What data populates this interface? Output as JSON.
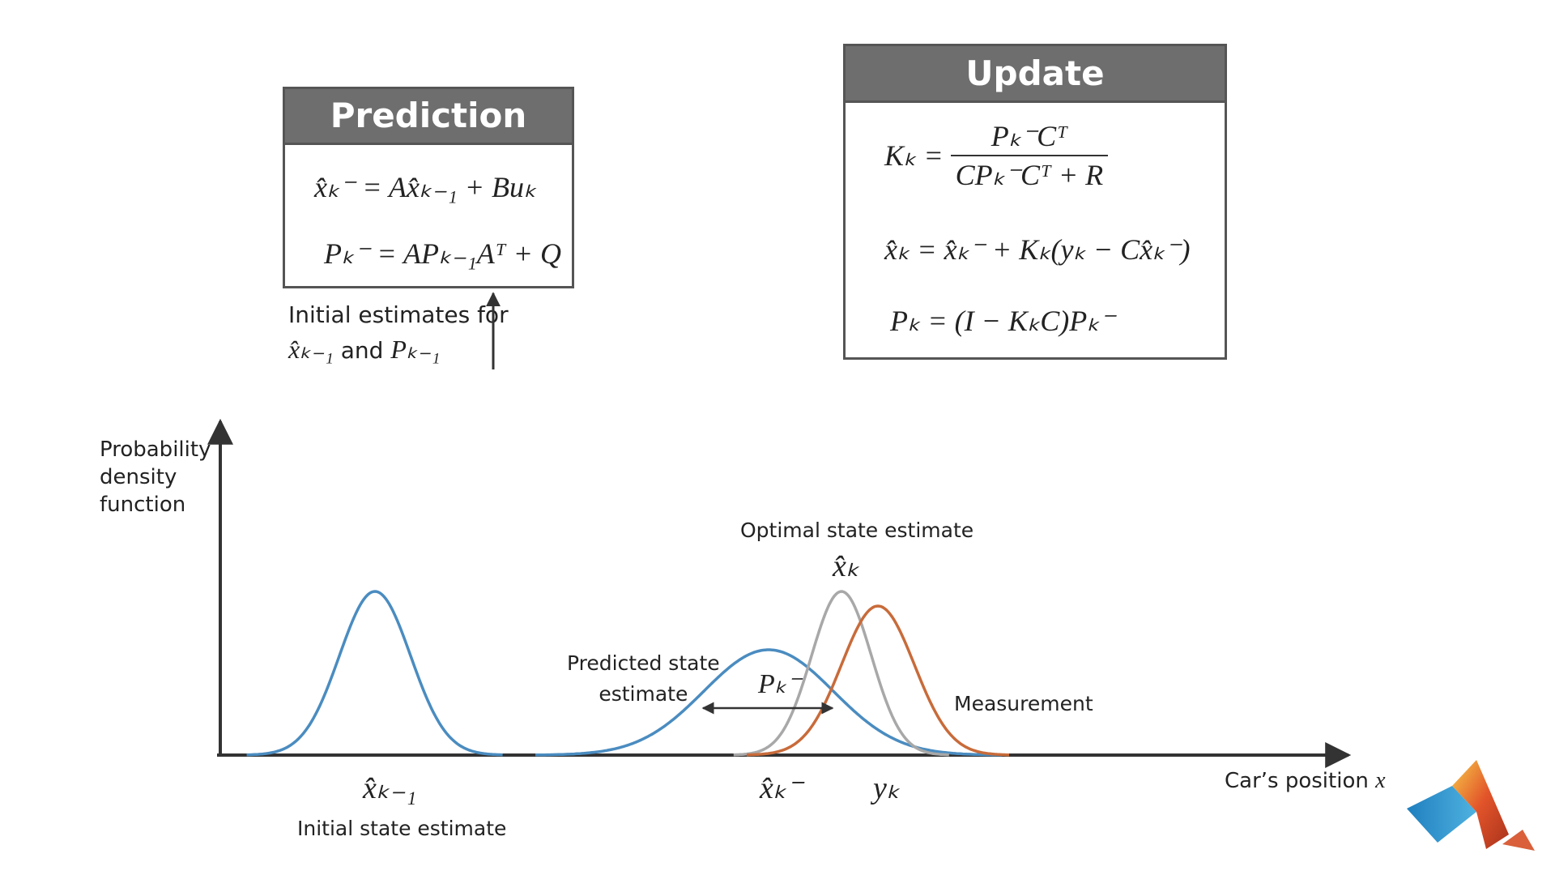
{
  "prediction": {
    "title": "Prediction",
    "eq1": "x̂ₖ⁻ = Ax̂ₖ₋₁ + Buₖ",
    "eq2": "Pₖ⁻ = APₖ₋₁Aᵀ + Q"
  },
  "update": {
    "title": "Update",
    "eq_gain_lhs": "Kₖ =",
    "eq_gain_num": "Pₖ⁻Cᵀ",
    "eq_gain_den": "CPₖ⁻Cᵀ + R",
    "eq2": "x̂ₖ = x̂ₖ⁻ + Kₖ(yₖ − Cx̂ₖ⁻)",
    "eq3": "Pₖ = (I − KₖC)Pₖ⁻"
  },
  "initial_note": {
    "line1": "Initial estimates for",
    "line2_var1": "x̂ₖ₋₁",
    "line2_and": "and",
    "line2_var2": "Pₖ₋₁"
  },
  "plot": {
    "y_axis_label_lines": [
      "Probability",
      "density",
      "function"
    ],
    "x_axis_label": "Car’s position",
    "x_axis_var": "x",
    "labels": {
      "initial_state_symbol": "x̂ₖ₋₁",
      "initial_state_text": "Initial state estimate",
      "predicted_symbol": "x̂ₖ⁻",
      "predicted_text_line1": "Predicted state",
      "predicted_text_line2": "estimate",
      "predicted_covariance": "Pₖ⁻",
      "optimal_text": "Optimal state estimate",
      "optimal_symbol": "x̂ₖ",
      "measurement_text": "Measurement",
      "measurement_symbol": "yₖ"
    },
    "colors": {
      "blue_curve": "#4a8cc0",
      "gray_curve": "#a8a8a8",
      "orange_curve": "#c86b3a",
      "axis": "#333333"
    }
  },
  "logo": {
    "icon": "matlab-logo-icon"
  }
}
